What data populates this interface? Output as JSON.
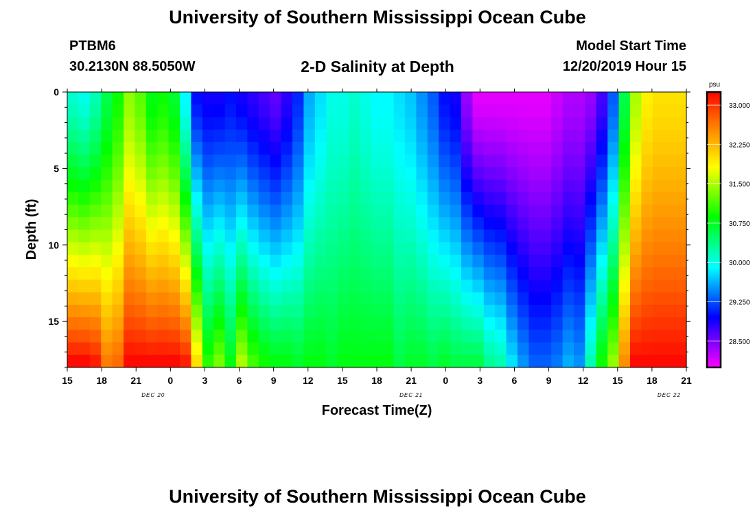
{
  "header": {
    "title": "University of Southern Mississippi Ocean Cube",
    "station": "PTBM6",
    "coords": "30.2130N 88.5050W",
    "subtitle": "2-D Salinity at Depth",
    "start_label": "Model Start Time",
    "start_value": "12/20/2019 Hour 15"
  },
  "footer": {
    "title": "University of Southern Mississippi Ocean Cube"
  },
  "chart_data": {
    "type": "heatmap",
    "title": "2-D Salinity at Depth",
    "xlabel": "Forecast Time(Z)",
    "ylabel": "Depth (ft)",
    "x_ticks": [
      "15",
      "18",
      "21",
      "0",
      "3",
      "6",
      "9",
      "12",
      "15",
      "18",
      "21",
      "0",
      "3",
      "6",
      "9",
      "12",
      "15",
      "18",
      "21"
    ],
    "date_labels": [
      {
        "text": "DEC  20",
        "tick_index": 2.5
      },
      {
        "text": "DEC  21",
        "tick_index": 10
      },
      {
        "text": "DEC  22",
        "tick_index": 17.5
      }
    ],
    "x_range_hours": [
      0,
      54
    ],
    "y_ticks": [
      0,
      5,
      10,
      15
    ],
    "y_range": [
      0,
      18
    ],
    "colorbar": {
      "unit": "psu",
      "range": [
        28.0,
        33.25
      ],
      "ticks": [
        "33.000",
        "32.250",
        "31.500",
        "30.750",
        "30.000",
        "29.250",
        "28.500"
      ],
      "tick_values": [
        33.0,
        32.25,
        31.5,
        30.75,
        30.0,
        29.25,
        28.5
      ],
      "colors": [
        "#ff00ff",
        "#8000ff",
        "#0000ff",
        "#0080ff",
        "#00ffff",
        "#00ff80",
        "#00ff00",
        "#80ff00",
        "#ffff00",
        "#ffb000",
        "#ff6000",
        "#ff0000"
      ]
    },
    "time_hours": [
      0,
      1,
      2,
      3,
      4,
      5,
      6,
      7,
      8,
      9,
      10,
      11,
      12,
      13,
      14,
      15,
      16,
      17,
      18,
      19,
      20,
      21,
      22,
      23,
      24,
      25,
      26,
      27,
      28,
      29,
      30,
      31,
      32,
      33,
      34,
      35,
      36,
      37,
      38,
      39,
      40,
      41,
      42,
      43,
      44,
      45,
      46,
      47,
      48,
      49,
      50,
      51,
      52,
      53,
      54
    ],
    "surface_psu": [
      30.1,
      30.0,
      30.2,
      30.6,
      30.9,
      31.4,
      31.2,
      30.8,
      30.9,
      30.7,
      29.9,
      29.0,
      28.9,
      28.9,
      29.0,
      28.9,
      28.8,
      28.7,
      28.6,
      28.8,
      29.1,
      29.6,
      29.8,
      30.0,
      30.0,
      30.1,
      30.0,
      29.9,
      29.9,
      29.8,
      29.7,
      29.5,
      29.3,
      29.0,
      28.9,
      28.4,
      28.1,
      28.1,
      28.1,
      28.1,
      28.1,
      28.1,
      28.1,
      28.2,
      28.3,
      28.3,
      28.4,
      28.7,
      29.3,
      30.6,
      31.5,
      31.9,
      32.0,
      32.0,
      32.0
    ],
    "bottom_psu": [
      33.2,
      33.2,
      33.1,
      32.6,
      32.7,
      33.2,
      33.2,
      33.2,
      33.2,
      33.2,
      33.1,
      32.0,
      31.0,
      31.3,
      30.8,
      31.5,
      31.1,
      30.9,
      30.8,
      30.8,
      30.7,
      30.8,
      30.8,
      30.7,
      30.8,
      30.8,
      30.8,
      30.8,
      30.8,
      30.6,
      30.7,
      30.7,
      30.6,
      30.7,
      30.6,
      30.6,
      30.6,
      30.3,
      30.2,
      29.8,
      29.5,
      29.3,
      29.3,
      29.4,
      29.6,
      29.5,
      30.2,
      30.9,
      31.4,
      32.5,
      33.2,
      33.2,
      33.2,
      33.2,
      33.2
    ]
  }
}
